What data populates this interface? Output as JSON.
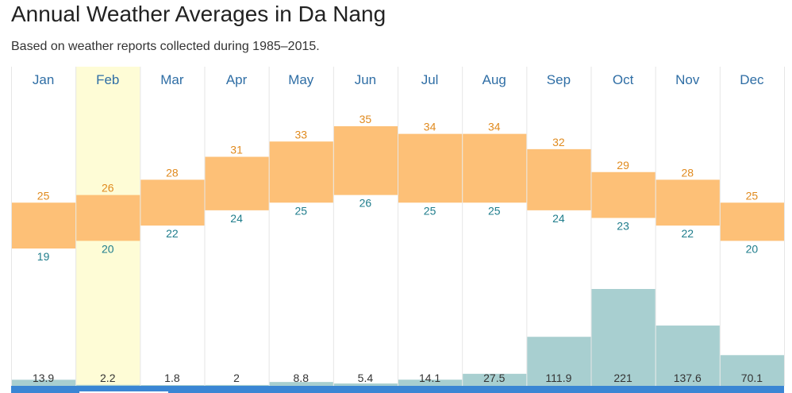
{
  "header": {
    "title": "Annual Weather Averages in Da Nang",
    "subtitle": "Based on weather reports collected during 1985–2015."
  },
  "colors": {
    "month_label": "#2f6ea5",
    "high_label": "#e08a1e",
    "low_label": "#1f7d8c",
    "temp_band": "#fdc077",
    "rain_bar": "#a8cfd0",
    "highlight_column": "#fefcd6",
    "grid": "#e6e6e6",
    "rain_label": "#333333",
    "bottom_bar": "#3a86d4"
  },
  "chart_data": {
    "type": "bar",
    "categories": [
      "Jan",
      "Feb",
      "Mar",
      "Apr",
      "May",
      "Jun",
      "Jul",
      "Aug",
      "Sep",
      "Oct",
      "Nov",
      "Dec"
    ],
    "highlighted_category": "Feb",
    "series": [
      {
        "values": [
          25,
          26,
          28,
          31,
          33,
          35,
          34,
          34,
          32,
          29,
          28,
          25
        ]
      },
      {
        "values": [
          19,
          20,
          22,
          24,
          25,
          26,
          25,
          25,
          24,
          23,
          22,
          20
        ]
      },
      {
        "values": [
          13.9,
          2.2,
          1.8,
          2,
          8.8,
          5.4,
          14.1,
          27.5,
          111.9,
          221,
          137.6,
          70.1
        ]
      }
    ],
    "temperature_axis_range": [
      10,
      40
    ],
    "rain_axis_range": [
      0,
      360
    ],
    "grid": true
  }
}
